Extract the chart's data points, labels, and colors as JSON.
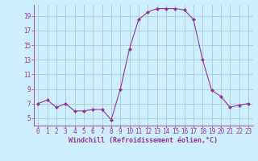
{
  "x": [
    0,
    1,
    2,
    3,
    4,
    5,
    6,
    7,
    8,
    9,
    10,
    11,
    12,
    13,
    14,
    15,
    16,
    17,
    18,
    19,
    20,
    21,
    22,
    23
  ],
  "y": [
    7.0,
    7.5,
    6.5,
    7.0,
    6.0,
    6.0,
    6.2,
    6.2,
    4.8,
    9.0,
    14.5,
    18.5,
    19.5,
    20.0,
    20.0,
    20.0,
    19.8,
    18.5,
    13.0,
    8.8,
    8.0,
    6.5,
    6.8,
    7.0
  ],
  "line_color": "#993399",
  "marker": "D",
  "marker_size": 2.0,
  "bg_color": "#cceeff",
  "grid_color": "#aacccc",
  "xlabel": "Windchill (Refroidissement éolien,°C)",
  "xlabel_color": "#993399",
  "tick_color": "#993399",
  "ylim": [
    4.0,
    20.5
  ],
  "xlim": [
    -0.5,
    23.5
  ],
  "yticks": [
    5,
    7,
    9,
    11,
    13,
    15,
    17,
    19
  ],
  "xticks": [
    0,
    1,
    2,
    3,
    4,
    5,
    6,
    7,
    8,
    9,
    10,
    11,
    12,
    13,
    14,
    15,
    16,
    17,
    18,
    19,
    20,
    21,
    22,
    23
  ],
  "tick_fontsize": 5.5,
  "xlabel_fontsize": 6.0
}
